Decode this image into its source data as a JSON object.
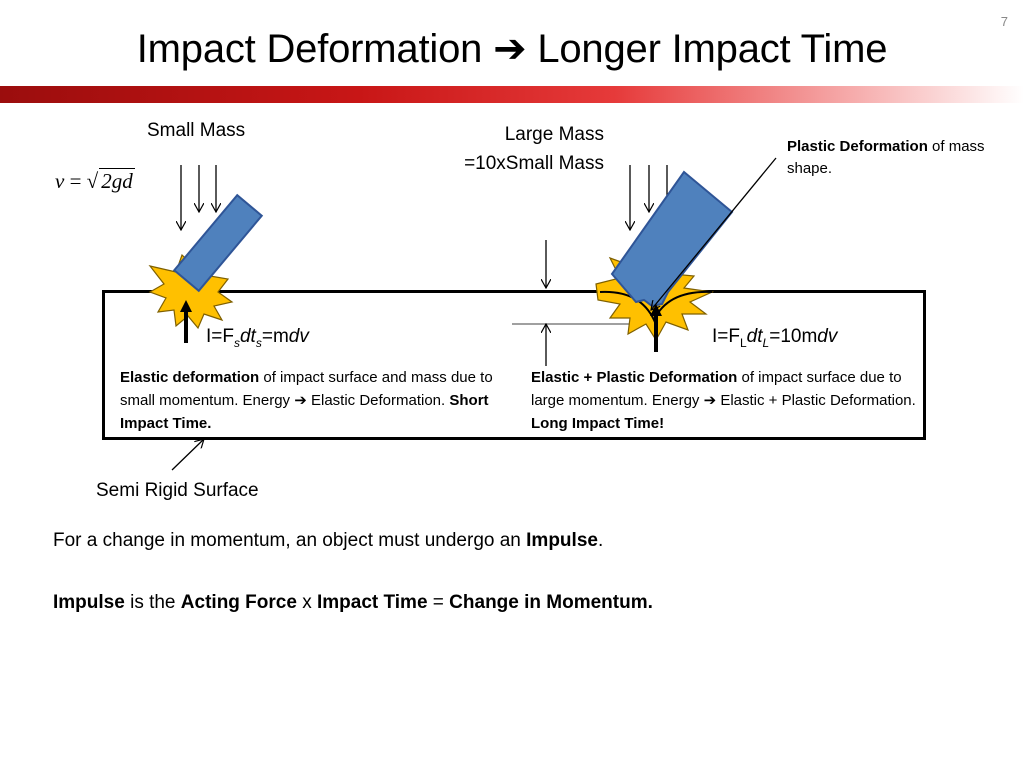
{
  "slide_number": "7",
  "title": {
    "before": "Impact Deformation",
    "arrow": "➔",
    "after": "Longer Impact Time"
  },
  "labels": {
    "small_mass": "Small Mass",
    "large_mass_line1": "Large Mass",
    "large_mass_line2": "=10xSmall Mass",
    "semi_rigid_surface": "Semi Rigid Surface"
  },
  "formula": {
    "lhs": "v",
    "equals": " = ",
    "root_symbol": "√",
    "radicand": "2gd"
  },
  "plastic_note": {
    "bold": "Plastic Deformation",
    "rest": " of mass shape."
  },
  "impulse_small": {
    "prefix": "I=F",
    "sub1": "s",
    "dt": "dt",
    "sub2": "s",
    "eq": "=m",
    "dv": "dv"
  },
  "impulse_large": {
    "prefix": "I=F",
    "sub1": "L",
    "dt": "dt",
    "sub2": "L",
    "eq": "=10m",
    "dv": "dv"
  },
  "desc_left": {
    "bold1": "Elastic deformation",
    "text1": " of impact surface and mass due to small momentum. Energy ",
    "arrow": "➔",
    "text2": " Elastic Deformation. ",
    "bold2": "Short Impact Time."
  },
  "desc_right": {
    "bold1": "Elastic + Plastic Deformation",
    "text1": " of impact surface due to large momentum. Energy ",
    "arrow": "➔",
    "text2": " Elastic + Plastic Deformation. ",
    "bold2": "Long Impact Time!"
  },
  "para1": {
    "text": "For a change in momentum, an object must undergo an ",
    "bold": "Impulse",
    "end": "."
  },
  "para2": {
    "b1": "Impulse",
    "t1": " is the ",
    "b2": "Acting Force",
    "t2": " x ",
    "b3": "Impact Time",
    "t3": " = ",
    "b4": "Change in Momentum."
  },
  "colors": {
    "mass_fill": "#4f81bd",
    "mass_stroke": "#2f5597",
    "starburst_fill": "#ffc000",
    "starburst_stroke": "#7f6000",
    "accent_red": "#c00000"
  }
}
